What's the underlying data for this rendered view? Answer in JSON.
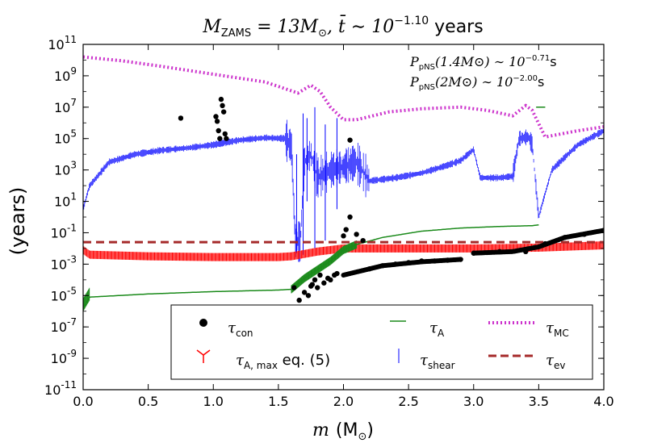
{
  "chart_data": {
    "type": "scatter",
    "title_main": "M",
    "title_sub": "ZAMS",
    "title_mid": " = 13M",
    "title_sun": "⊙",
    "title_t": ", t̄ ∼ 10",
    "title_exp": "−1.10",
    "title_unit": " years",
    "ylabel": "(years)",
    "xlabel_var": "m",
    "xlabel_unit_open": "(M",
    "xlabel_unit_sun": "⊙",
    "xlabel_unit_close": ")",
    "xlim": [
      0.0,
      4.0
    ],
    "ylim_log10": [
      -11,
      11
    ],
    "x_ticks": [
      "0.0",
      "0.5",
      "1.0",
      "1.5",
      "2.0",
      "2.5",
      "3.0",
      "3.5",
      "4.0"
    ],
    "y_ticks": [
      {
        "base": "10",
        "exp": "11"
      },
      {
        "base": "10",
        "exp": "9"
      },
      {
        "base": "10",
        "exp": "7"
      },
      {
        "base": "10",
        "exp": "5"
      },
      {
        "base": "10",
        "exp": "3"
      },
      {
        "base": "10",
        "exp": "1"
      },
      {
        "base": "10",
        "exp": "-1"
      },
      {
        "base": "10",
        "exp": "-3"
      },
      {
        "base": "10",
        "exp": "-5"
      },
      {
        "base": "10",
        "exp": "-7"
      },
      {
        "base": "10",
        "exp": "-9"
      },
      {
        "base": "10",
        "exp": "-11"
      }
    ],
    "annotations": [
      {
        "lhs": "P",
        "sub": "pNS",
        "arg": "(1.4M⊙) ∼ 10",
        "exp": "−0.71",
        "unit": "s"
      },
      {
        "lhs": "P",
        "sub": "pNS",
        "arg": "(2M⊙) ∼ 10",
        "exp": "−2.00",
        "unit": "s"
      }
    ],
    "legend": [
      {
        "key": "con",
        "sym": "τ",
        "sub": "con",
        "extra": "",
        "color": "#000000",
        "marker": "dot"
      },
      {
        "key": "A",
        "sym": "τ",
        "sub": "A",
        "extra": "",
        "color": "#1a8a1a",
        "marker": "line"
      },
      {
        "key": "MC",
        "sym": "τ",
        "sub": "MC",
        "extra": "",
        "color": "#cc33cc",
        "marker": "dotted"
      },
      {
        "key": "Amax",
        "sym": "τ",
        "sub": "A, max",
        "extra": " eq. (5)",
        "color": "#ff0000",
        "marker": "tri"
      },
      {
        "key": "shear",
        "sym": "τ",
        "sub": "shear",
        "extra": "",
        "color": "#0000ff",
        "marker": "vline"
      },
      {
        "key": "ev",
        "sym": "τ",
        "sub": "ev",
        "extra": "",
        "color": "#a52a2a",
        "marker": "dashed"
      }
    ],
    "series": {
      "MC": {
        "color": "#cc33cc",
        "points": [
          [
            0.0,
            10.2
          ],
          [
            0.3,
            9.95
          ],
          [
            0.6,
            9.6
          ],
          [
            1.0,
            9.1
          ],
          [
            1.4,
            8.6
          ],
          [
            1.65,
            7.9
          ],
          [
            1.75,
            8.4
          ],
          [
            1.82,
            8.0
          ],
          [
            1.9,
            7.0
          ],
          [
            2.0,
            6.2
          ],
          [
            2.1,
            6.2
          ],
          [
            2.35,
            6.7
          ],
          [
            2.6,
            6.9
          ],
          [
            2.9,
            7.0
          ],
          [
            3.1,
            6.8
          ],
          [
            3.3,
            6.45
          ],
          [
            3.4,
            7.1
          ],
          [
            3.45,
            6.8
          ],
          [
            3.55,
            5.1
          ],
          [
            3.8,
            5.5
          ],
          [
            4.0,
            5.75
          ]
        ]
      },
      "shear": {
        "color": "#0000ff",
        "points": [
          [
            0.0,
            0.5
          ],
          [
            0.05,
            2.0
          ],
          [
            0.2,
            3.5
          ],
          [
            0.4,
            4.0
          ],
          [
            0.6,
            4.25
          ],
          [
            0.8,
            4.4
          ],
          [
            1.0,
            4.6
          ],
          [
            1.2,
            4.9
          ],
          [
            1.4,
            5.05
          ],
          [
            1.55,
            5.0
          ],
          [
            1.6,
            4.5
          ],
          [
            1.63,
            -1.5
          ],
          [
            1.67,
            -1.6
          ],
          [
            1.7,
            3.5
          ],
          [
            1.75,
            4.0
          ],
          [
            1.8,
            2.5
          ],
          [
            1.9,
            3.0
          ],
          [
            2.0,
            3.2
          ],
          [
            2.1,
            3.5
          ],
          [
            2.2,
            2.3
          ],
          [
            2.4,
            2.5
          ],
          [
            2.6,
            2.8
          ],
          [
            2.8,
            3.3
          ],
          [
            2.9,
            3.6
          ],
          [
            3.0,
            4.3
          ],
          [
            3.05,
            2.5
          ],
          [
            3.2,
            2.5
          ],
          [
            3.3,
            2.6
          ],
          [
            3.35,
            5.0
          ],
          [
            3.42,
            5.1
          ],
          [
            3.45,
            4.6
          ],
          [
            3.5,
            0.0
          ],
          [
            3.6,
            3.0
          ],
          [
            3.8,
            4.6
          ],
          [
            4.0,
            5.5
          ]
        ]
      },
      "A": {
        "color": "#1a8a1a",
        "points": [
          [
            0.0,
            -5.8
          ],
          [
            0.05,
            -5.1
          ],
          [
            0.5,
            -4.9
          ],
          [
            1.0,
            -4.75
          ],
          [
            1.5,
            -4.65
          ],
          [
            1.6,
            -4.6
          ],
          [
            1.7,
            -3.9
          ],
          [
            1.9,
            -2.8
          ],
          [
            2.0,
            -2.1
          ],
          [
            2.1,
            -1.75
          ],
          [
            2.3,
            -1.3
          ],
          [
            2.6,
            -0.9
          ],
          [
            2.9,
            -0.7
          ],
          [
            3.2,
            -0.6
          ],
          [
            3.45,
            -0.55
          ],
          [
            3.5,
            -0.5
          ]
        ]
      },
      "Amax": {
        "color": "#ff0000",
        "points": [
          [
            0.0,
            -2.1
          ],
          [
            0.05,
            -2.4
          ],
          [
            0.5,
            -2.5
          ],
          [
            1.0,
            -2.55
          ],
          [
            1.5,
            -2.55
          ],
          [
            1.6,
            -2.5
          ],
          [
            1.8,
            -2.2
          ],
          [
            2.0,
            -2.0
          ],
          [
            2.5,
            -2.0
          ],
          [
            3.0,
            -2.0
          ],
          [
            3.5,
            -1.95
          ],
          [
            4.0,
            -1.8
          ]
        ]
      },
      "ev": {
        "color": "#a52a2a",
        "value": -1.6
      },
      "con": {
        "color": "#000000",
        "points": [
          [
            0.75,
            6.3
          ],
          [
            1.02,
            6.4
          ],
          [
            1.03,
            6.1
          ],
          [
            1.04,
            5.5
          ],
          [
            1.05,
            5.0
          ],
          [
            1.06,
            7.5
          ],
          [
            1.07,
            7.1
          ],
          [
            1.08,
            6.7
          ],
          [
            1.09,
            5.3
          ],
          [
            1.1,
            5.0
          ],
          [
            1.62,
            -4.5
          ],
          [
            1.66,
            -5.3
          ],
          [
            1.7,
            -4.8
          ],
          [
            1.73,
            -5.0
          ],
          [
            1.76,
            -4.3
          ],
          [
            1.78,
            -4.0
          ],
          [
            1.8,
            -4.5
          ],
          [
            1.82,
            -3.7
          ],
          [
            1.85,
            -4.2
          ],
          [
            1.9,
            -4.0
          ],
          [
            1.93,
            -3.7
          ],
          [
            1.95,
            -3.6
          ],
          [
            2.0,
            -1.2
          ],
          [
            2.02,
            -0.8
          ],
          [
            2.05,
            0.0
          ],
          [
            2.1,
            -1.1
          ],
          [
            2.15,
            -1.5
          ],
          [
            2.2,
            -3.3
          ],
          [
            2.3,
            -3.1
          ],
          [
            2.4,
            -3.0
          ],
          [
            2.5,
            -2.9
          ],
          [
            2.6,
            -2.8
          ],
          [
            2.7,
            -2.8
          ],
          [
            2.8,
            -2.75
          ],
          [
            2.9,
            -2.7
          ],
          [
            2.05,
            4.9
          ],
          [
            1.75,
            -4.4
          ],
          [
            1.88,
            -3.9
          ],
          [
            3.0,
            -2.3
          ],
          [
            3.2,
            -2.2
          ],
          [
            3.4,
            -2.2
          ],
          [
            3.55,
            -1.7
          ],
          [
            3.7,
            -1.3
          ],
          [
            3.85,
            -1.1
          ],
          [
            4.0,
            -0.85
          ]
        ]
      }
    }
  }
}
